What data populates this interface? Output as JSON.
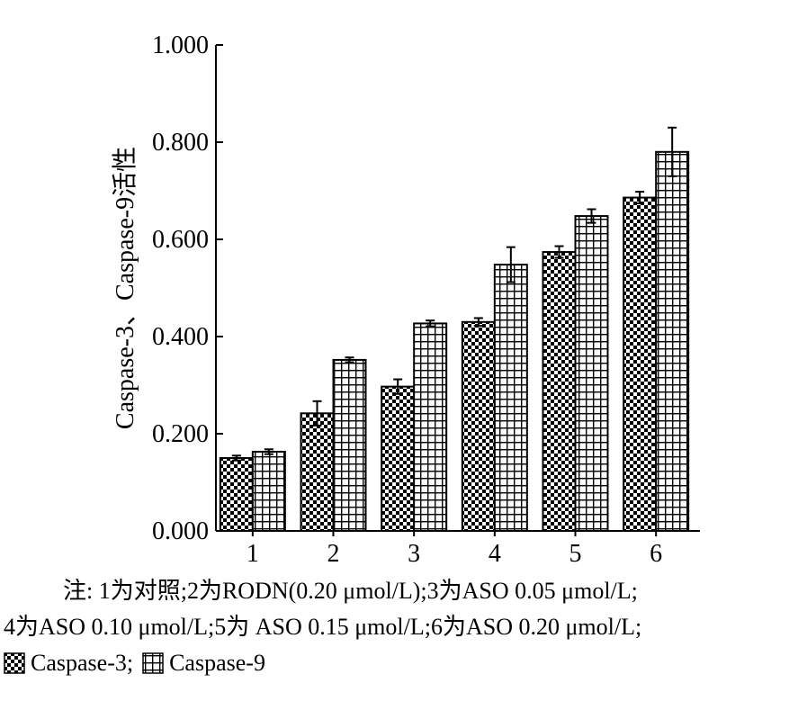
{
  "chart_data": {
    "type": "bar",
    "categories": [
      "1",
      "2",
      "3",
      "4",
      "5",
      "6"
    ],
    "ylabel": "Caspase-3、Caspase-9活性",
    "xlabel": "",
    "ylim": [
      0,
      1.0
    ],
    "yticks": [
      "0.000",
      "0.200",
      "0.400",
      "0.600",
      "0.800",
      "1.000"
    ],
    "grid": false,
    "legend_position": "bottom",
    "series": [
      {
        "name": "Caspase-3",
        "values": [
          0.15,
          0.242,
          0.297,
          0.43,
          0.574,
          0.686
        ],
        "errors": [
          0.005,
          0.025,
          0.015,
          0.008,
          0.012,
          0.012
        ],
        "pattern": "checkerboard"
      },
      {
        "name": "Caspase-9",
        "values": [
          0.163,
          0.352,
          0.427,
          0.548,
          0.648,
          0.78
        ],
        "errors": [
          0.005,
          0.005,
          0.006,
          0.036,
          0.014,
          0.05
        ],
        "pattern": "cross-grid"
      }
    ]
  },
  "note": {
    "line1": "注: 1为对照;2为RODN(0.20 μmol/L);3为ASO 0.05 μmol/L;",
    "line2": "4为ASO 0.10 μmol/L;5为 ASO 0.15 μmol/L;6为ASO 0.20 μmol/L;"
  },
  "legend": {
    "item1": "Caspase-3;",
    "item2": "Caspase-9"
  }
}
